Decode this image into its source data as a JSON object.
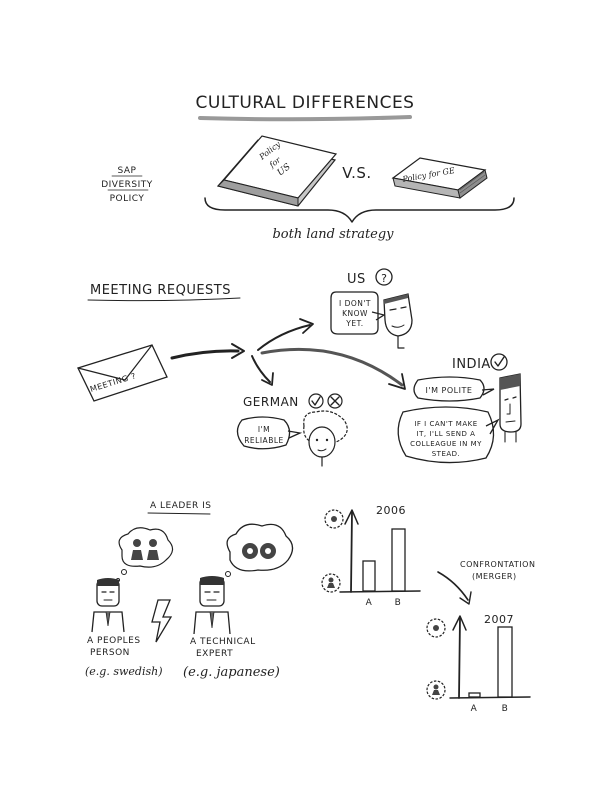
{
  "title": "CULTURAL DIFFERENCES",
  "policy": {
    "sap_label": [
      "SAP",
      "DIVERSITY",
      "POLICY"
    ],
    "book_us": [
      "Policy",
      "for",
      "US"
    ],
    "vs": "V.S.",
    "book_ge": "Policy for GE",
    "strategy": "both land strategy"
  },
  "meeting": {
    "heading": "MEETING REQUESTS",
    "envelope": "MEETING ?",
    "us_label": "US",
    "us_icon": "?",
    "us_bubble": [
      "I DON'T",
      "KNOW",
      "YET."
    ],
    "german_label": "GERMAN",
    "german_icons": [
      "check-icon",
      "cross-icon"
    ],
    "german_bubble": [
      "I'M",
      "RELIABLE"
    ],
    "india_label": "INDIA",
    "india_bubble": "I'M POLITE",
    "india_bubble2": [
      "IF I CAN'T MAKE",
      "IT, I'LL SEND A",
      "COLLEAGUE IN MY",
      "STEAD."
    ]
  },
  "leader": {
    "heading": "A LEADER IS",
    "people_person": [
      "A PEOPLES",
      "PERSON"
    ],
    "people_example": "(e.g. swedish)",
    "technical_expert": [
      "A TECHNICAL",
      "EXPERT"
    ],
    "technical_example": "(e.g. japanese)"
  },
  "charts": {
    "chart1": {
      "year": "2006",
      "categories": [
        "A",
        "B"
      ],
      "values": [
        30,
        62
      ]
    },
    "transition": [
      "CONFRONTATION",
      "(MERGER)"
    ],
    "chart2": {
      "year": "2007",
      "categories": [
        "A",
        "B"
      ],
      "values": [
        4,
        70
      ]
    }
  }
}
